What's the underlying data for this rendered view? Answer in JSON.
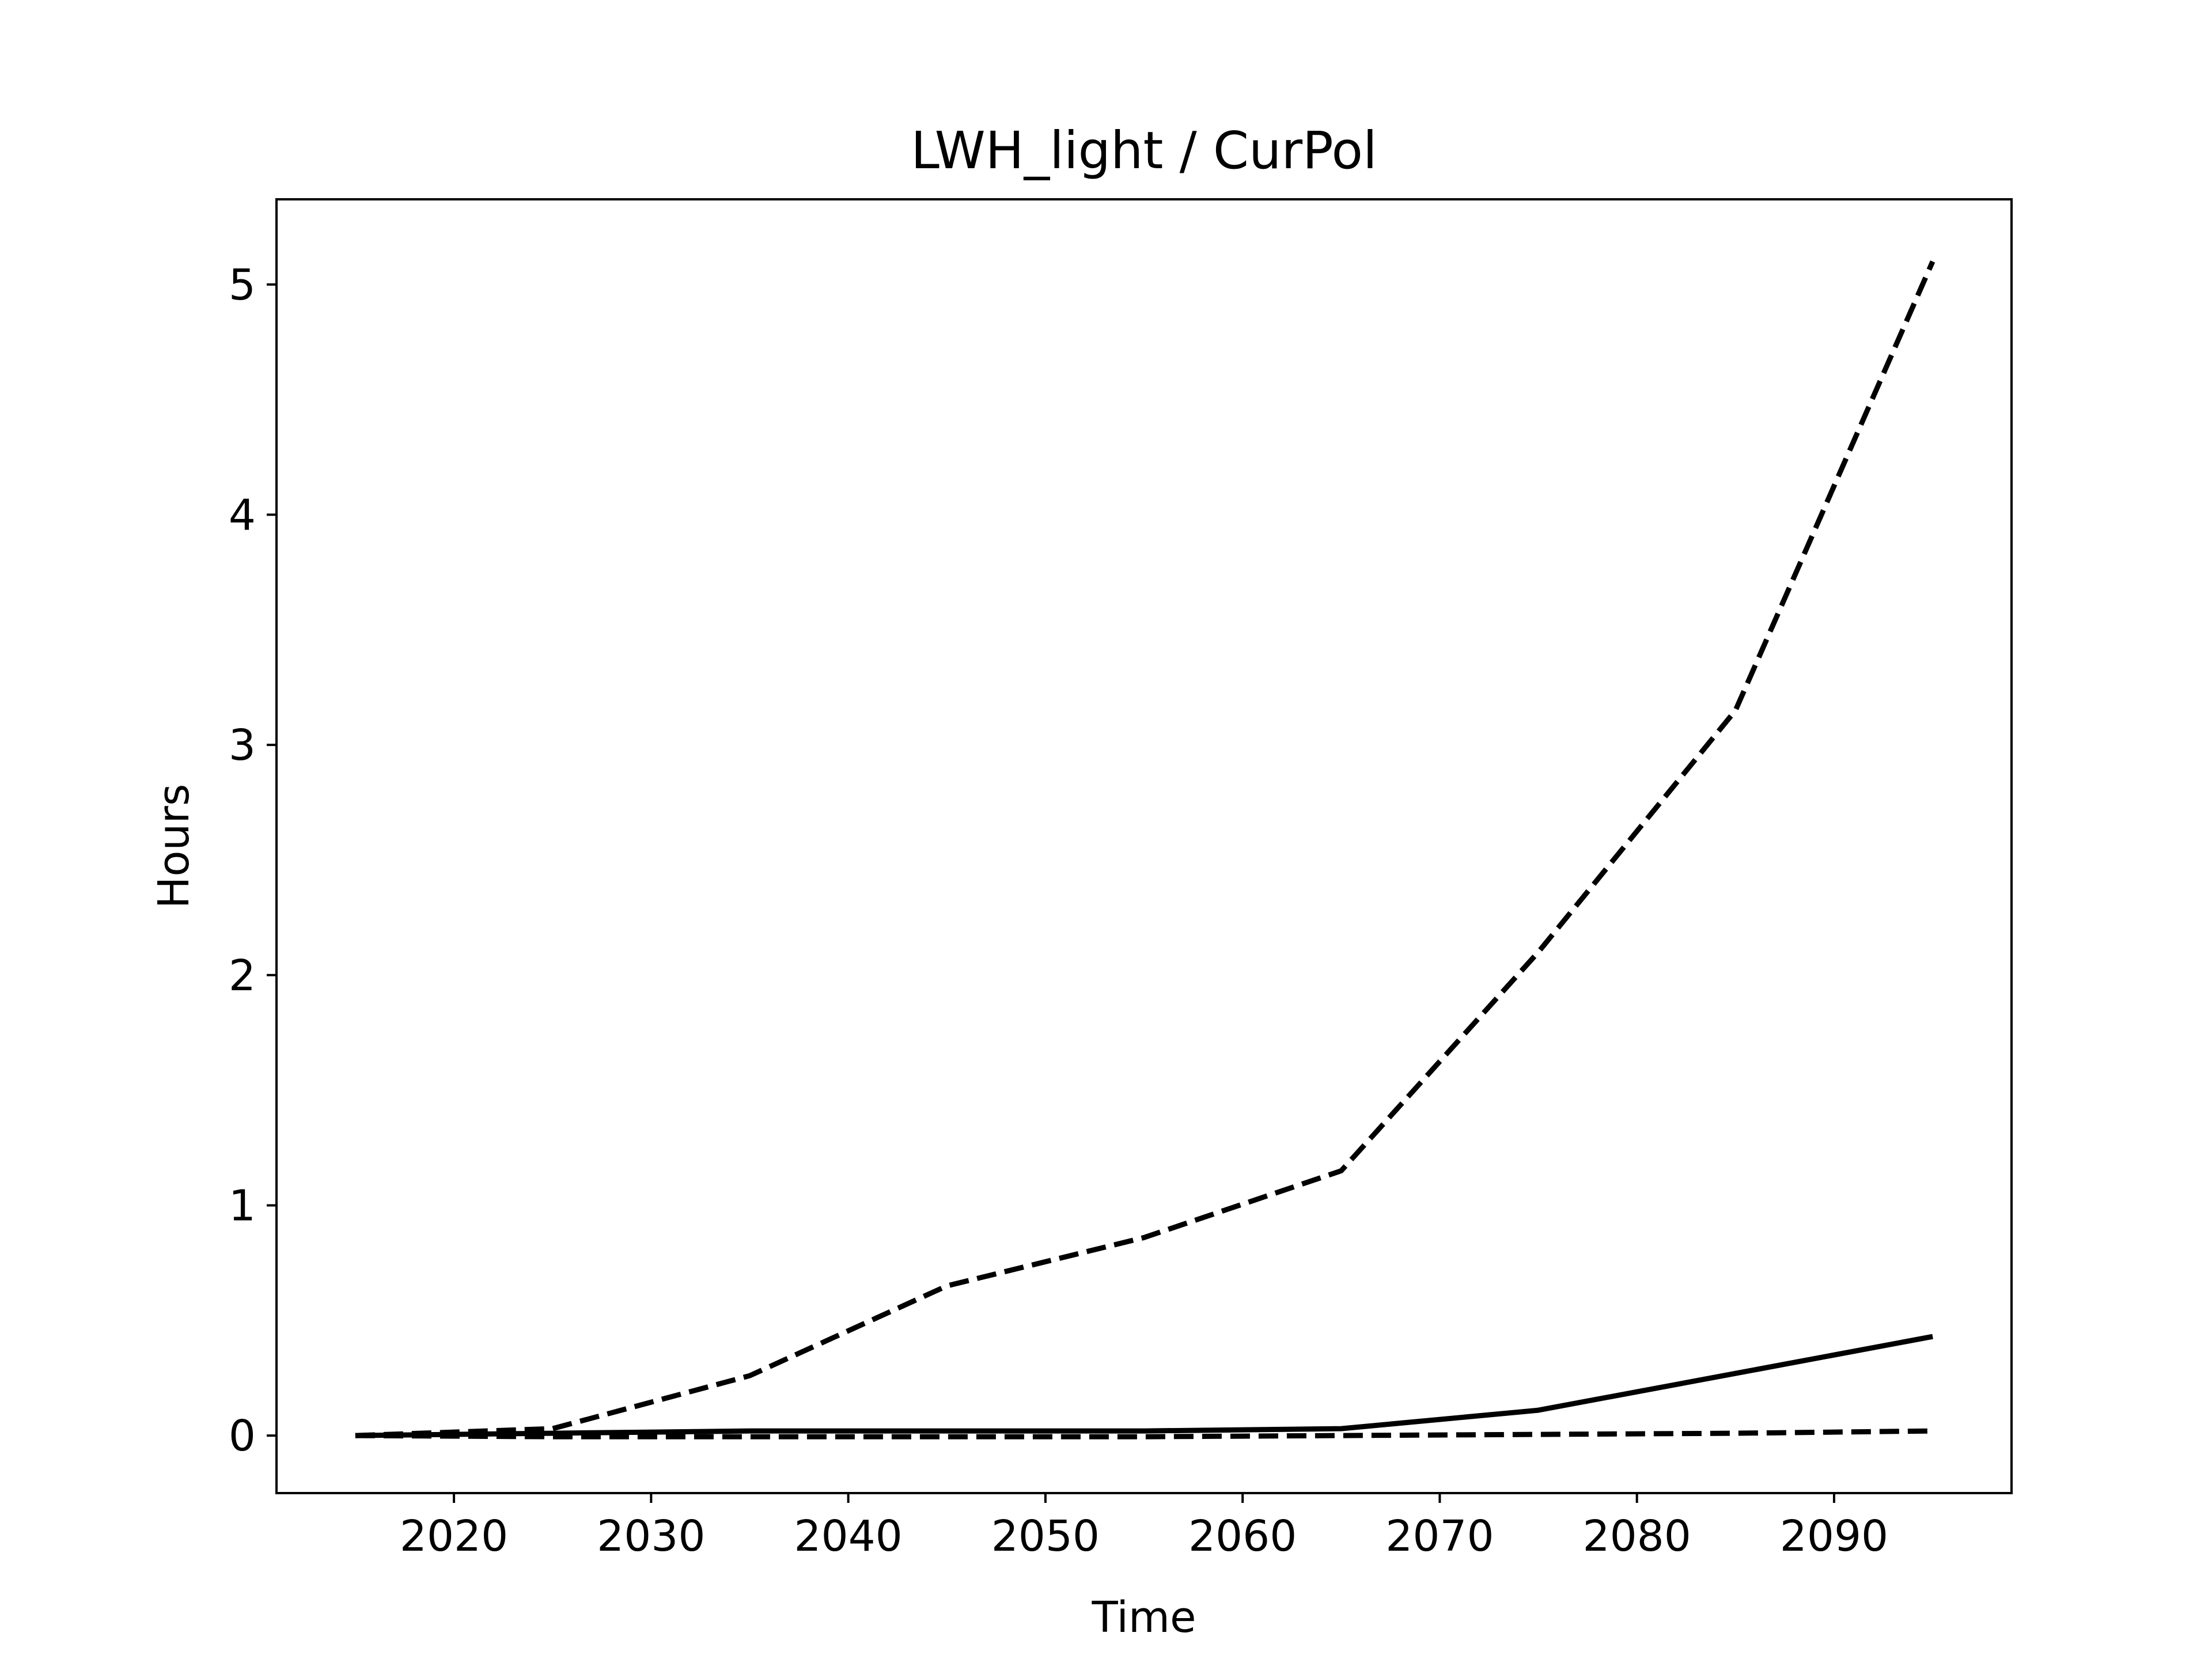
{
  "chart_data": {
    "type": "line",
    "title": "LWH_light / CurPol",
    "xlabel": "Time",
    "ylabel": "Hours",
    "xlim": [
      2011,
      2099
    ],
    "ylim": [
      -0.25,
      5.37
    ],
    "xticks": [
      2020,
      2030,
      2040,
      2050,
      2060,
      2070,
      2080,
      2090
    ],
    "yticks": [
      0,
      1,
      2,
      3,
      4,
      5
    ],
    "grid": false,
    "x": [
      2015,
      2025,
      2035,
      2045,
      2055,
      2065,
      2075,
      2085,
      2095
    ],
    "series": [
      {
        "style": "dashed",
        "color": "#000000",
        "values": [
          0.0,
          0.03,
          0.26,
          0.65,
          0.86,
          1.15,
          2.1,
          3.15,
          5.1
        ]
      },
      {
        "style": "solid",
        "color": "#000000",
        "values": [
          0.0,
          0.01,
          0.02,
          0.02,
          0.02,
          0.03,
          0.11,
          0.27,
          0.43
        ]
      },
      {
        "style": "dashed",
        "color": "#000000",
        "values": [
          0.0,
          -0.005,
          -0.005,
          -0.005,
          -0.005,
          0.0,
          0.005,
          0.01,
          0.02
        ]
      }
    ]
  }
}
